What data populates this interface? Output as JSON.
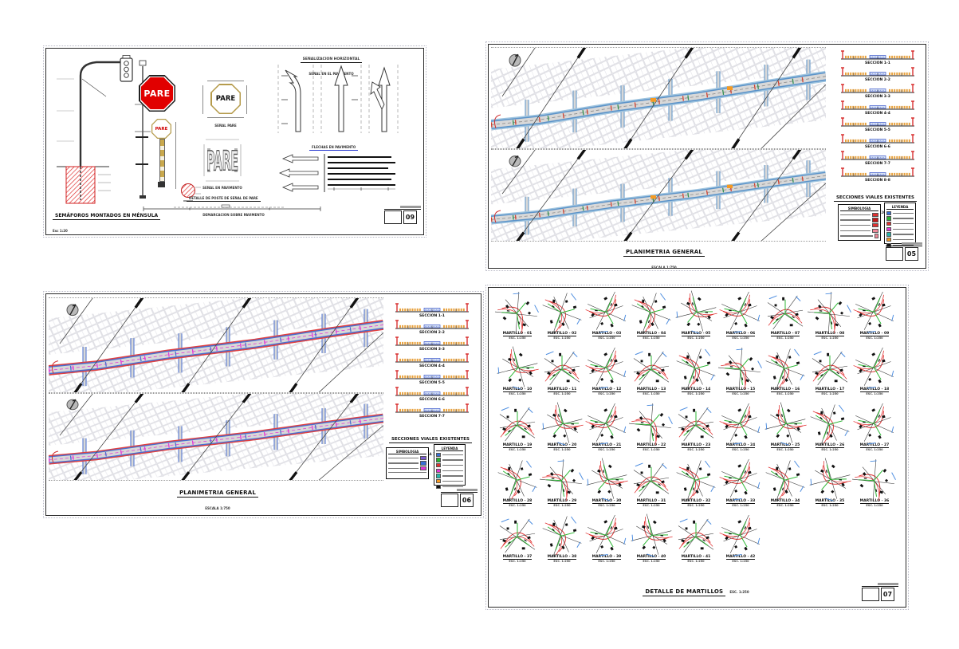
{
  "page": {
    "background": "#ffffff"
  },
  "colors": {
    "pare_red": "#e10000",
    "caption_blue": "#2637cf",
    "road_edge_blue": "#5b93c9",
    "road_edge_red": "#e04040",
    "marking_magenta": "#e437d8",
    "sidewalk_orange": "#f59a23",
    "detail_green": "#27b52f",
    "detail_red": "#e03030"
  },
  "sheet_signage": {
    "sheet_number": "09",
    "horizontal_header": {
      "title": "SEÑALIZACION HORIZONTAL",
      "subtitle": "SEÑAL EN EL PAVIMENTO"
    },
    "pare_sign_text": "PARE",
    "senal_pare_caption": "SEÑAL PARE",
    "senal_pavimento_caption": "SEÑAL EN PAVIMENTO",
    "flechas_caption": "FLECHAS EN PAVIMENTO",
    "poste_caption": "DETALLE DE POSTE DE SEÑAL DE PARE",
    "perfil_caption": "DEMARCACION SOBRE PAVIMENTO",
    "main_title": "SEMÁFOROS MONTADOS EN MÉNSULA",
    "main_scale": "Esc 1:20"
  },
  "sheet_plan_top": {
    "sheet_number": "05",
    "plan_title": "PLANIMETRIA GENERAL",
    "plan_scale": "ESCALA 1:750",
    "sections_title": "SECCIONES VIALES EXISTENTES",
    "sections_scale": "ESCALA 1:200",
    "legend_left_title": "SIMBOLOGIA",
    "legend_right_title": "LEYENDA",
    "sections": [
      {
        "label": "SECCION 1-1"
      },
      {
        "label": "SECCION 2-2"
      },
      {
        "label": "SECCION 3-3"
      },
      {
        "label": "SECCION 4-4"
      },
      {
        "label": "SECCION 5-5"
      },
      {
        "label": "SECCION 6-6"
      },
      {
        "label": "SECCION 7-7"
      },
      {
        "label": "SECCION 8-8"
      }
    ]
  },
  "sheet_plan_bottom": {
    "sheet_number": "06",
    "plan_title": "PLANIMETRIA GENERAL",
    "plan_scale": "ESCALA 1:750",
    "sections_title": "SECCIONES VIALES EXISTENTES",
    "sections_scale": "ESCALA 1:200",
    "legend_left_title": "SIMBOLOGIA",
    "legend_right_title": "LEYENDA",
    "sections": [
      {
        "label": "SECCION 1-1"
      },
      {
        "label": "SECCION 2-2"
      },
      {
        "label": "SECCION 3-3"
      },
      {
        "label": "SECCION 4-4"
      },
      {
        "label": "SECCION 5-5"
      },
      {
        "label": "SECCION 6-6"
      },
      {
        "label": "SECCION 7-7"
      }
    ]
  },
  "sheet_martillos": {
    "sheet_number": "07",
    "title": "DETALLE DE MARTILLOS",
    "scale": "ESC. 1:250",
    "item_scale": "ESC. 1:250",
    "items": [
      {
        "label": "MARTILLO - 01"
      },
      {
        "label": "MARTILLO - 02"
      },
      {
        "label": "MARTILLO - 03"
      },
      {
        "label": "MARTILLO - 04"
      },
      {
        "label": "MARTILLO - 05"
      },
      {
        "label": "MARTILLO - 06"
      },
      {
        "label": "MARTILLO - 07"
      },
      {
        "label": "MARTILLO - 08"
      },
      {
        "label": "MARTILLO - 09"
      },
      {
        "label": "MARTILLO - 10"
      },
      {
        "label": "MARTILLO - 11"
      },
      {
        "label": "MARTILLO - 12"
      },
      {
        "label": "MARTILLO - 13"
      },
      {
        "label": "MARTILLO - 14"
      },
      {
        "label": "MARTILLO - 15"
      },
      {
        "label": "MARTILLO - 16"
      },
      {
        "label": "MARTILLO - 17"
      },
      {
        "label": "MARTILLO - 18"
      },
      {
        "label": "MARTILLO - 19"
      },
      {
        "label": "MARTILLO - 20"
      },
      {
        "label": "MARTILLO - 21"
      },
      {
        "label": "MARTILLO - 22"
      },
      {
        "label": "MARTILLO - 23"
      },
      {
        "label": "MARTILLO - 24"
      },
      {
        "label": "MARTILLO - 25"
      },
      {
        "label": "MARTILLO - 26"
      },
      {
        "label": "MARTILLO - 27"
      },
      {
        "label": "MARTILLO - 28"
      },
      {
        "label": "MARTILLO - 29"
      },
      {
        "label": "MARTILLO - 30"
      },
      {
        "label": "MARTILLO - 31"
      },
      {
        "label": "MARTILLO - 32"
      },
      {
        "label": "MARTILLO - 33"
      },
      {
        "label": "MARTILLO - 34"
      },
      {
        "label": "MARTILLO - 35"
      },
      {
        "label": "MARTILLO - 36"
      },
      {
        "label": "MARTILLO - 37"
      },
      {
        "label": "MARTILLO - 38"
      },
      {
        "label": "MARTILLO - 39"
      },
      {
        "label": "MARTILLO - 40"
      },
      {
        "label": "MARTILLO - 41"
      },
      {
        "label": "MARTILLO - 42"
      }
    ]
  }
}
